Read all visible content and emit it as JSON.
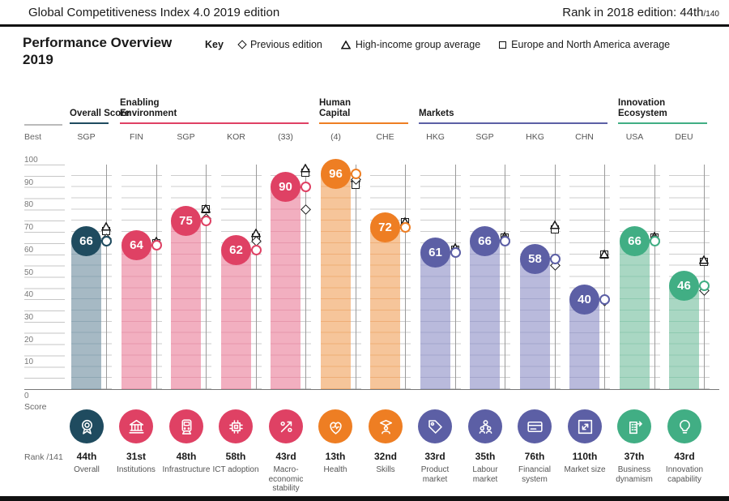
{
  "header": {
    "title": "Global Competitiveness Index 4.0 2019 edition",
    "rank_2018_text": "Rank in 2018 edition: 44th",
    "rank_2018_total": "/140"
  },
  "section": {
    "title_line1": "Performance Overview",
    "title_line2": "2019",
    "key_label": "Key",
    "key_items": [
      {
        "symbol": "diamond-icon",
        "label": "Previous edition"
      },
      {
        "symbol": "triangle-icon",
        "label": "High-income group average"
      },
      {
        "symbol": "square-icon",
        "label": "Europe and North America average"
      }
    ]
  },
  "axis": {
    "best_label": "Best",
    "zero_label": "0",
    "score_label": "Score",
    "rank_footer": "Rank /141",
    "ticks": [
      100,
      90,
      80,
      70,
      60,
      50,
      40,
      30,
      20,
      10
    ],
    "ylim": [
      0,
      100
    ]
  },
  "chart_data": {
    "type": "bar",
    "title": "Performance Overview 2019",
    "ylabel": "Score",
    "ylim": [
      0,
      100
    ],
    "grid": "dashed horizontal every 5, labels every 10",
    "legend": [
      "Previous edition (diamond)",
      "High-income group average (triangle)",
      "Europe and North America average (square)"
    ],
    "groups": [
      {
        "label": "Overall Score",
        "color": "#1F4B5F",
        "bar": "#A6B9C4",
        "stripe": "#8FA7B4"
      },
      {
        "label": "Enabling Environment",
        "color": "#DF4164",
        "bar": "#F2AFC0",
        "stripe": "#E797AC"
      },
      {
        "label": "Human Capital",
        "color": "#EE7E23",
        "bar": "#F6C59A",
        "stripe": "#EFAE77"
      },
      {
        "label": "Markets",
        "color": "#5C5FA5",
        "bar": "#B9BADC",
        "stripe": "#A4A6CC"
      },
      {
        "label": "Innovation Ecosystem",
        "color": "#41AE84",
        "bar": "#A9D7C3",
        "stripe": "#8EC9B0"
      }
    ],
    "columns": [
      {
        "group": 0,
        "best": "SGP",
        "value": 66,
        "rank": "44th",
        "label": "Overall",
        "icon": "medal-icon",
        "markers": {
          "previous": 67,
          "high_income": 73,
          "europe_na": 70.5
        }
      },
      {
        "group": 1,
        "best": "FIN",
        "value": 64,
        "rank": "31st",
        "label": "Institutions",
        "icon": "bank-icon",
        "markers": {
          "previous": 64,
          "high_income": 66.5,
          "europe_na": 65
        }
      },
      {
        "group": 1,
        "best": "SGP",
        "value": 75,
        "rank": "48th",
        "label": "Infrastructure",
        "icon": "train-icon",
        "markers": {
          "previous": 76,
          "high_income": 81,
          "europe_na": 80
        }
      },
      {
        "group": 1,
        "best": "KOR",
        "value": 62,
        "rank": "58th",
        "label": "ICT adoption",
        "icon": "chip-icon",
        "markers": {
          "previous": 66,
          "high_income": 70,
          "europe_na": 67.5
        }
      },
      {
        "group": 1,
        "best": "(33)",
        "value": 90,
        "rank": "43rd",
        "label": "Macro-economic stability",
        "icon": "percent-arrow-icon",
        "markers": {
          "previous": 80,
          "high_income": 99,
          "europe_na": 96.5
        }
      },
      {
        "group": 2,
        "best": "(4)",
        "value": 96,
        "rank": "13th",
        "label": "Health",
        "icon": "heart-pulse-icon",
        "markers": {
          "previous": 93.5,
          "high_income": 94.5,
          "europe_na": 91
        }
      },
      {
        "group": 2,
        "best": "CHE",
        "value": 72,
        "rank": "32nd",
        "label": "Skills",
        "icon": "graduate-icon",
        "markers": {
          "previous": 72,
          "high_income": 75,
          "europe_na": 74.5
        }
      },
      {
        "group": 3,
        "best": "HKG",
        "value": 61,
        "rank": "33rd",
        "label": "Product market",
        "icon": "tag-icon",
        "markers": {
          "previous": 61,
          "high_income": 63.5,
          "europe_na": 62
        }
      },
      {
        "group": 3,
        "best": "SGP",
        "value": 66,
        "rank": "35th",
        "label": "Labour market",
        "icon": "people-icon",
        "markers": {
          "previous": 66.5,
          "high_income": 68.5,
          "europe_na": 67.5
        }
      },
      {
        "group": 3,
        "best": "HKG",
        "value": 58,
        "rank": "76th",
        "label": "Financial system",
        "icon": "credit-card-icon",
        "markers": {
          "previous": 55,
          "high_income": 73.5,
          "europe_na": 71
        }
      },
      {
        "group": 3,
        "best": "CHN",
        "value": 40,
        "rank": "110th",
        "label": "Market size",
        "icon": "expand-icon",
        "markers": {
          "previous": 39,
          "high_income": 60.5,
          "europe_na": 60
        }
      },
      {
        "group": 4,
        "best": "USA",
        "value": 66,
        "rank": "37th",
        "label": "Business dynamism",
        "icon": "building-arrow-icon",
        "markers": {
          "previous": 66.5,
          "high_income": 68.5,
          "europe_na": 67.5
        }
      },
      {
        "group": 4,
        "best": "DEU",
        "value": 46,
        "rank": "43rd",
        "label": "Innovation capability",
        "icon": "bulb-icon",
        "markers": {
          "previous": 44,
          "high_income": 58,
          "europe_na": 56.5
        }
      }
    ]
  }
}
